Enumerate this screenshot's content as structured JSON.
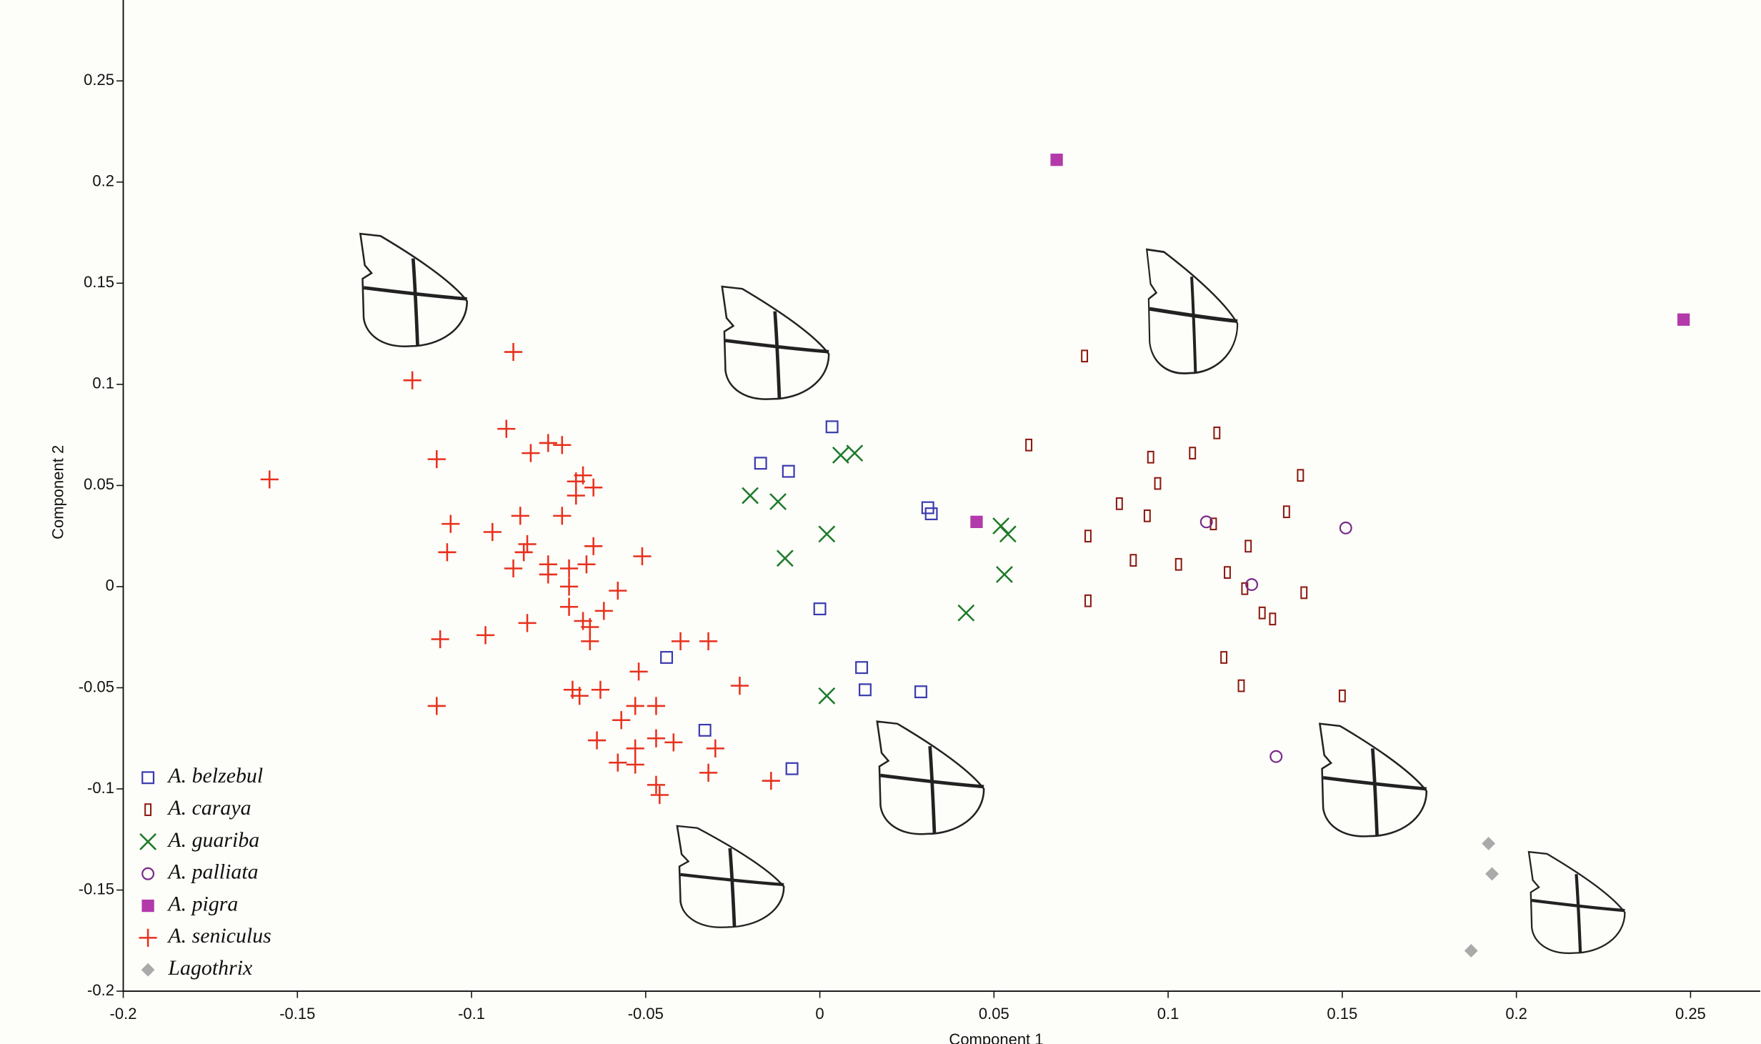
{
  "chart_data": {
    "type": "scatter",
    "x_label": "Component 1",
    "y_label": "Component 2",
    "xlim": [
      -0.2,
      0.27
    ],
    "ylim": [
      -0.2,
      0.29
    ],
    "xticks": [
      -0.2,
      -0.15,
      -0.1,
      -0.05,
      0,
      0.05,
      0.1,
      0.15,
      0.2,
      0.25
    ],
    "yticks": [
      -0.2,
      -0.15,
      -0.1,
      -0.05,
      0,
      0.05,
      0.1,
      0.15,
      0.2,
      0.25
    ],
    "series": [
      {
        "name": "A. belzebul",
        "color": "#3a3ab0",
        "marker": "square-open",
        "x": [
          0.0035,
          -0.017,
          -0.009,
          0.031,
          0.032,
          0,
          -0.044,
          0.012,
          0.013,
          0.029,
          -0.033,
          -0.008
        ],
        "values": [
          0.079,
          0.061,
          0.057,
          0.039,
          0.036,
          -0.011,
          -0.035,
          -0.04,
          -0.051,
          -0.052,
          -0.071,
          -0.09
        ]
      },
      {
        "name": "A. caraya",
        "color": "#8b1a10",
        "marker": "bar-open",
        "x": [
          0.076,
          0.114,
          0.06,
          0.107,
          0.095,
          0.097,
          0.138,
          0.086,
          0.094,
          0.134,
          0.113,
          0.077,
          0.123,
          0.09,
          0.103,
          0.117,
          0.122,
          0.139,
          0.077,
          0.127,
          0.13,
          0.116,
          0.121,
          0.15
        ],
        "values": [
          0.114,
          0.076,
          0.07,
          0.066,
          0.064,
          0.051,
          0.055,
          0.041,
          0.035,
          0.037,
          0.031,
          0.025,
          0.02,
          0.013,
          0.011,
          0.007,
          -0.001,
          -0.003,
          -0.007,
          -0.013,
          -0.016,
          -0.035,
          -0.049,
          -0.054
        ]
      },
      {
        "name": "A. guariba",
        "color": "#1e7a2a",
        "marker": "x",
        "x": [
          0.006,
          0.01,
          -0.02,
          -0.012,
          0.002,
          -0.01,
          0.052,
          0.054,
          0.053,
          0.042,
          0.002
        ],
        "values": [
          0.065,
          0.066,
          0.045,
          0.042,
          0.026,
          0.014,
          0.03,
          0.026,
          0.006,
          -0.013,
          -0.054
        ]
      },
      {
        "name": "A. palliata",
        "color": "#7a2a8a",
        "marker": "circle-open",
        "x": [
          0.111,
          0.151,
          0.124,
          0.131
        ],
        "values": [
          0.032,
          0.029,
          0.001,
          -0.084
        ]
      },
      {
        "name": "A. pigra",
        "color": "#b23aab",
        "marker": "square",
        "x": [
          0.068,
          0.248,
          0.045
        ],
        "values": [
          0.211,
          0.132,
          0.032
        ]
      },
      {
        "name": "A. seniculus",
        "color": "#e8301c",
        "marker": "plus",
        "x": [
          -0.088,
          -0.117,
          -0.158,
          -0.11,
          -0.09,
          -0.078,
          -0.074,
          -0.083,
          -0.068,
          -0.07,
          -0.065,
          -0.07,
          -0.074,
          -0.086,
          -0.106,
          -0.094,
          -0.084,
          -0.085,
          -0.107,
          -0.065,
          -0.051,
          -0.078,
          -0.088,
          -0.072,
          -0.067,
          -0.078,
          -0.072,
          -0.058,
          -0.072,
          -0.062,
          -0.068,
          -0.066,
          -0.084,
          -0.066,
          -0.096,
          -0.109,
          -0.04,
          -0.032,
          -0.052,
          -0.023,
          -0.071,
          -0.069,
          -0.063,
          -0.11,
          -0.053,
          -0.047,
          -0.057,
          -0.064,
          -0.047,
          -0.042,
          -0.03,
          -0.053,
          -0.058,
          -0.053,
          -0.032,
          -0.014,
          -0.047,
          -0.046
        ],
        "values": [
          0.116,
          0.102,
          0.053,
          0.063,
          0.078,
          0.071,
          0.07,
          0.066,
          0.055,
          0.052,
          0.049,
          0.045,
          0.035,
          0.035,
          0.031,
          0.027,
          0.021,
          0.017,
          0.017,
          0.02,
          0.015,
          0.011,
          0.009,
          0.009,
          0.011,
          0.006,
          0,
          -0.002,
          -0.01,
          -0.012,
          -0.017,
          -0.02,
          -0.018,
          -0.027,
          -0.024,
          -0.026,
          -0.027,
          -0.027,
          -0.042,
          -0.049,
          -0.051,
          -0.054,
          -0.051,
          -0.059,
          -0.059,
          -0.059,
          -0.066,
          -0.076,
          -0.075,
          -0.077,
          -0.08,
          -0.08,
          -0.087,
          -0.088,
          -0.092,
          -0.096,
          -0.098,
          -0.103
        ]
      },
      {
        "name": "Lagothrix",
        "color": "#aaaaaa",
        "marker": "diamond",
        "x": [
          0.192,
          0.193,
          0.187
        ],
        "values": [
          -0.127,
          -0.142,
          -0.18
        ]
      }
    ]
  }
}
